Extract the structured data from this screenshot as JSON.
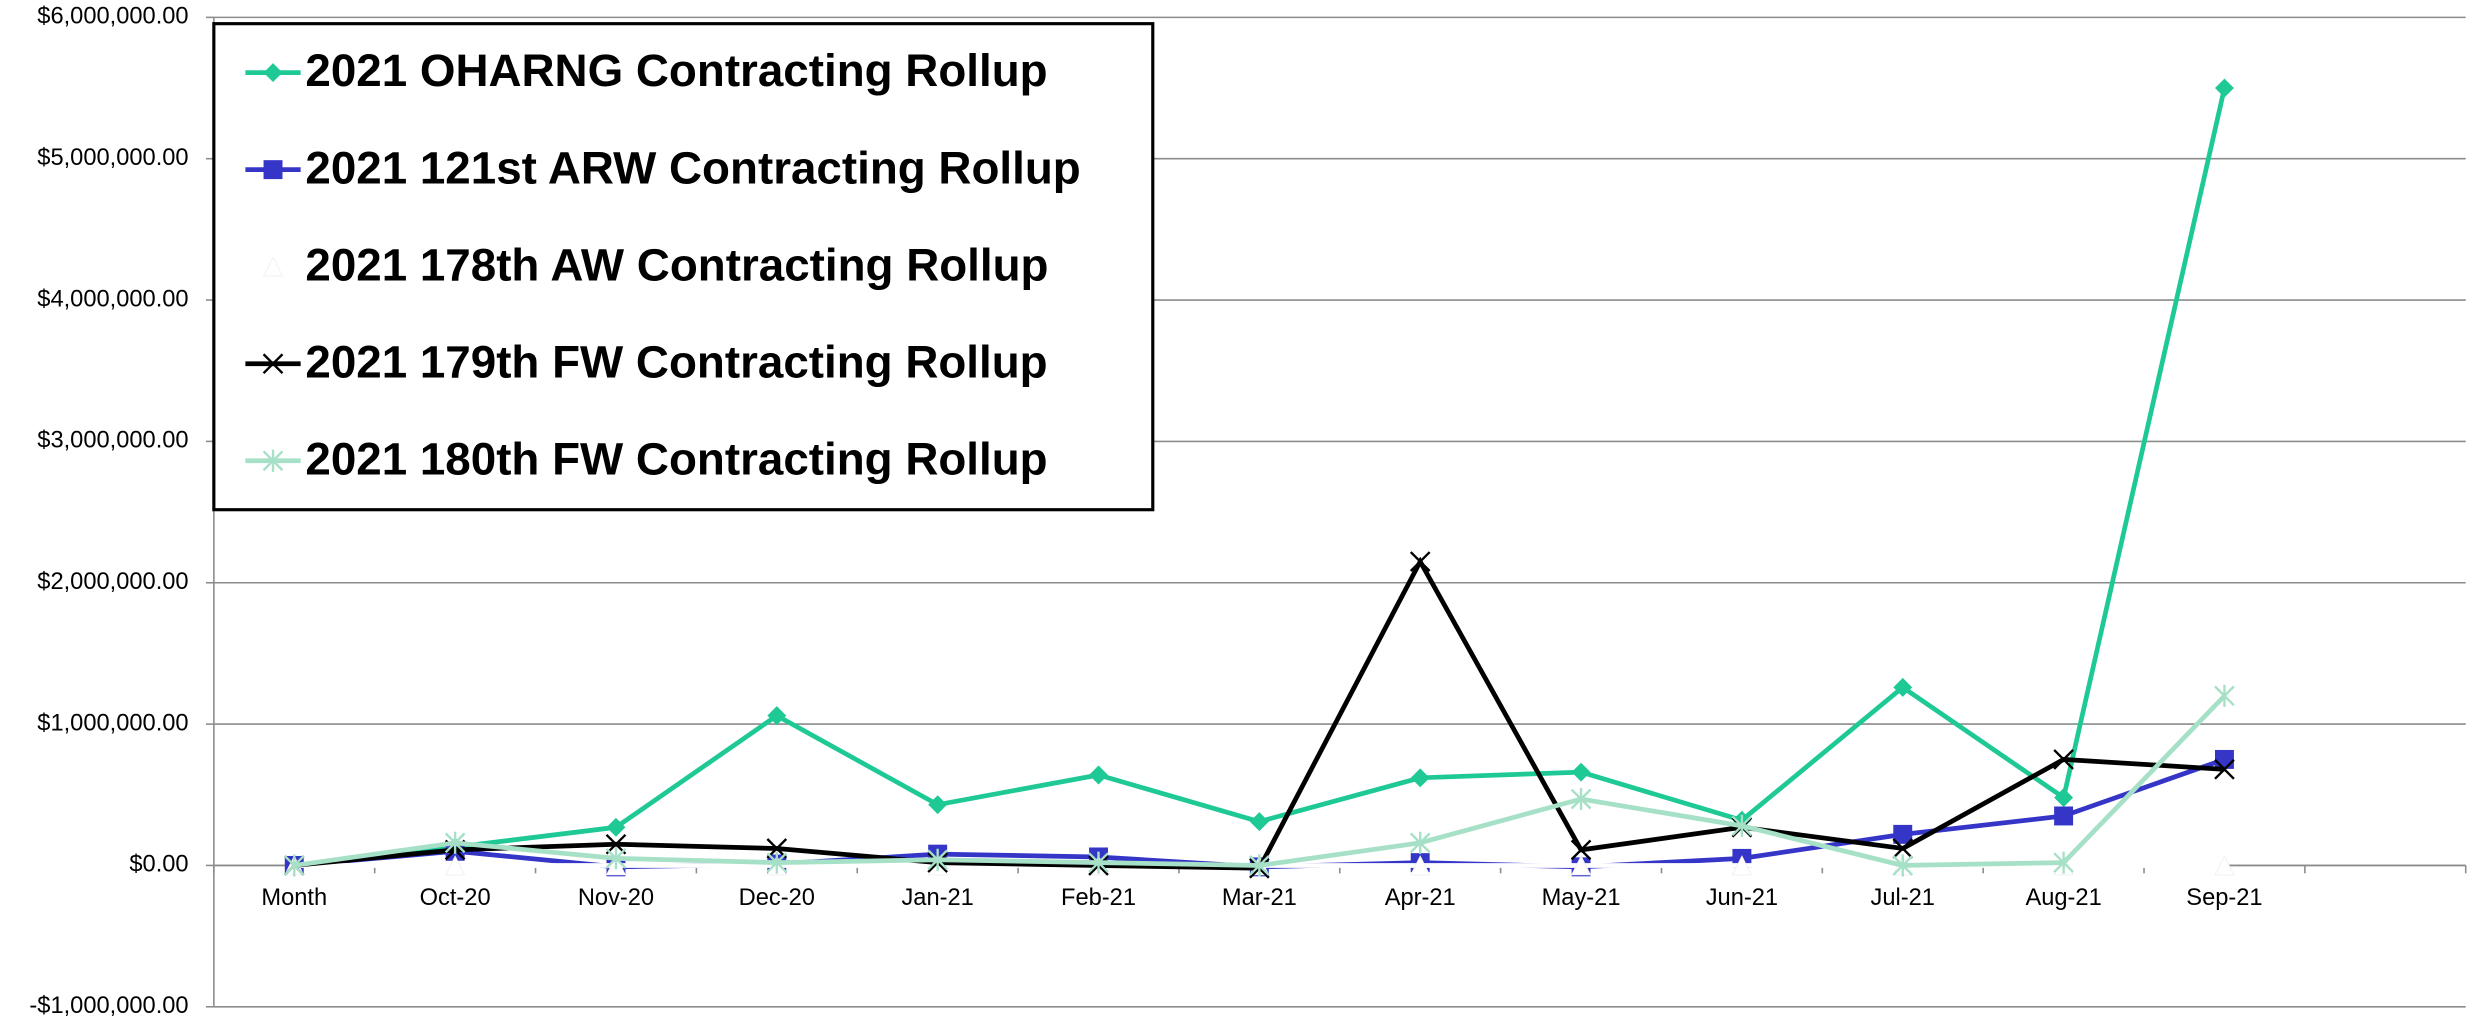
{
  "chart_data": {
    "type": "line",
    "categories": [
      "Month",
      "Oct-20",
      "Nov-20",
      "Dec-20",
      "Jan-21",
      "Feb-21",
      "Mar-21",
      "Apr-21",
      "May-21",
      "Jun-21",
      "Jul-21",
      "Aug-21",
      "Sep-21",
      null
    ],
    "series": [
      {
        "name": "2021 OHARNG Contracting Rollup",
        "color": "#1fc996",
        "marker": "diamond",
        "values": [
          0,
          130000,
          270000,
          1060000,
          430000,
          640000,
          310000,
          620000,
          660000,
          320000,
          1260000,
          480000,
          5500000,
          null
        ]
      },
      {
        "name": "2021 121st ARW Contracting Rollup",
        "color": "#3535c8",
        "marker": "square",
        "values": [
          0,
          100000,
          -10000,
          10000,
          80000,
          60000,
          -10000,
          20000,
          -10000,
          50000,
          220000,
          350000,
          750000,
          null
        ]
      },
      {
        "name": "2021 178th AW Contracting Rollup",
        "color": "#ffffff",
        "marker": "triangle",
        "values": [
          0,
          0,
          0,
          0,
          0,
          0,
          0,
          0,
          0,
          0,
          0,
          0,
          0,
          null
        ]
      },
      {
        "name": "2021 179th FW Contracting Rollup",
        "color": "#000000",
        "marker": "x",
        "values": [
          0,
          110000,
          150000,
          120000,
          20000,
          0,
          -20000,
          2150000,
          110000,
          270000,
          120000,
          750000,
          680000,
          null
        ]
      },
      {
        "name": "2021 180th FW Contracting Rollup",
        "color": "#a6e0c6",
        "marker": "asterisk",
        "values": [
          0,
          160000,
          50000,
          20000,
          40000,
          20000,
          0,
          160000,
          470000,
          280000,
          0,
          20000,
          1200000,
          null
        ]
      }
    ],
    "ylim": [
      -1000000,
      6000000
    ],
    "yticks": [
      {
        "value": -1000000,
        "label": "-$1,000,000.00"
      },
      {
        "value": 0,
        "label": "$0.00"
      },
      {
        "value": 1000000,
        "label": "$1,000,000.00"
      },
      {
        "value": 2000000,
        "label": "$2,000,000.00"
      },
      {
        "value": 3000000,
        "label": "$3,000,000.00"
      },
      {
        "value": 4000000,
        "label": "$4,000,000.00"
      },
      {
        "value": 5000000,
        "label": "$5,000,000.00"
      },
      {
        "value": 6000000,
        "label": "$6,000,000.00"
      }
    ],
    "grid": true,
    "legend": "upper left"
  }
}
